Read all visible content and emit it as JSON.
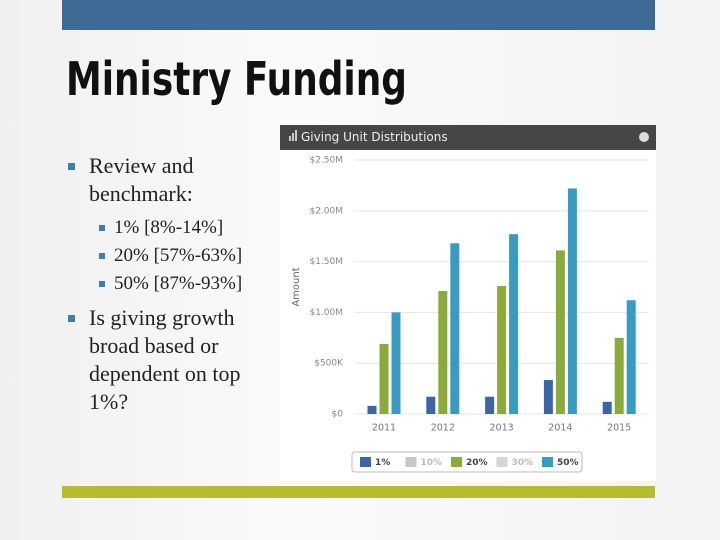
{
  "slide": {
    "title": "Ministry Funding",
    "bullets": [
      {
        "text": "Review and benchmark:",
        "sub": [
          "1% [8%-14%]",
          "20% [57%-63%]",
          "50% [87%-93%]"
        ]
      },
      {
        "text": "Is giving growth broad based or dependent on top 1%?",
        "sub": []
      }
    ]
  },
  "chart_data": {
    "type": "bar",
    "title": "Giving Unit Distributions",
    "y_label": "Amount",
    "categories": [
      "2011",
      "2012",
      "2013",
      "2014",
      "2015"
    ],
    "series": [
      {
        "name": "1%",
        "color": "#3a66a8",
        "values": [
          80000,
          170000,
          170000,
          335000,
          120000
        ]
      },
      {
        "name": "10%",
        "color": "#c8c8c8",
        "values": [
          null,
          null,
          null,
          null,
          null
        ]
      },
      {
        "name": "20%",
        "color": "#8aab3c",
        "values": [
          690000,
          1210000,
          1260000,
          1610000,
          750000
        ]
      },
      {
        "name": "30%",
        "color": "#d6d6d6",
        "values": [
          null,
          null,
          null,
          null,
          null
        ]
      },
      {
        "name": "50%",
        "color": "#3a9bc1",
        "values": [
          1000000,
          1680000,
          1770000,
          2220000,
          1120000
        ]
      }
    ],
    "ylim": [
      0,
      2500000
    ],
    "yticks": [
      {
        "value": 0,
        "label": "$0"
      },
      {
        "value": 500000,
        "label": "$500K"
      },
      {
        "value": 1000000,
        "label": "$1.00M"
      },
      {
        "value": 1500000,
        "label": "$1.50M"
      },
      {
        "value": 2000000,
        "label": "$2.00M"
      },
      {
        "value": 2500000,
        "label": "$2.50M"
      }
    ],
    "grid": true
  }
}
